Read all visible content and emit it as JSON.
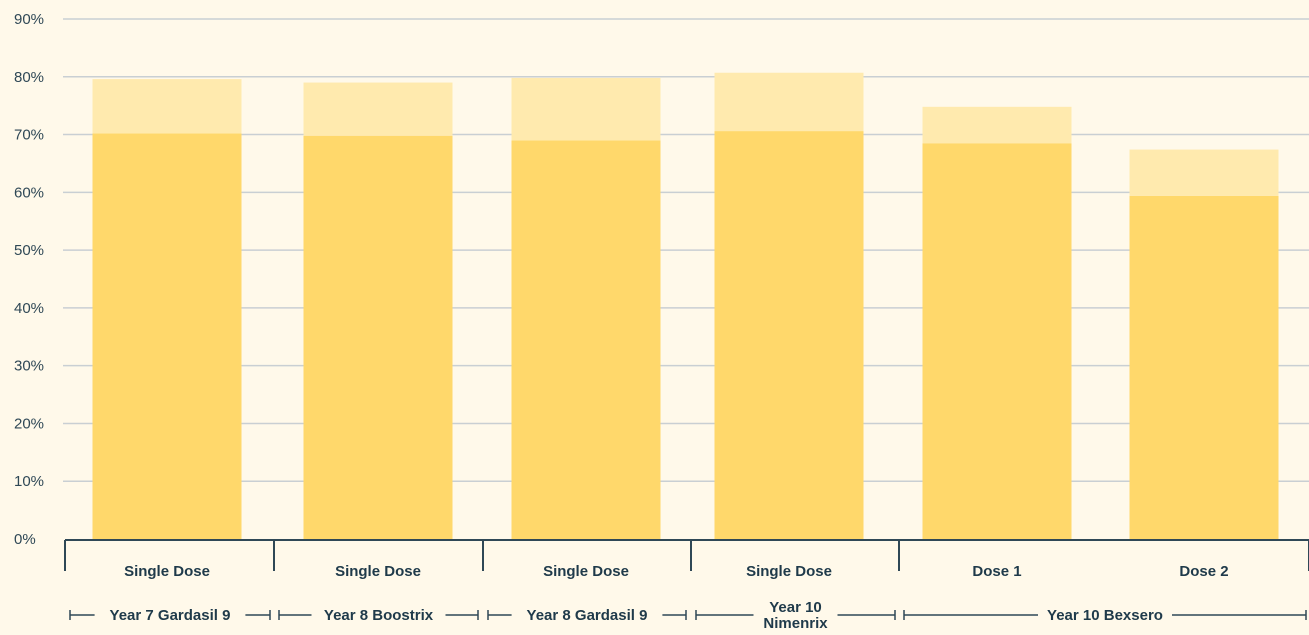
{
  "chart_data": {
    "type": "bar",
    "stacked": true,
    "yticks": [
      "0%",
      "10%",
      "20%",
      "30%",
      "40%",
      "50%",
      "60%",
      "70%",
      "80%",
      "90%"
    ],
    "ylim": [
      0,
      90
    ],
    "grid": true,
    "categories": [
      "Single Dose",
      "Single Dose",
      "Single Dose",
      "Single Dose",
      "Dose 1",
      "Dose 2"
    ],
    "groups": [
      "Year 7 Gardasil 9",
      "Year 8 Boostrix",
      "Year 8 Gardasil 9",
      "Year 10 Nimenrix",
      "Year 10 Bexsero"
    ],
    "group_spans": [
      [
        0,
        0
      ],
      [
        1,
        1
      ],
      [
        2,
        2
      ],
      [
        3,
        3
      ],
      [
        4,
        5
      ]
    ],
    "series": [
      {
        "values": [
          70.2,
          69.8,
          69.0,
          70.6,
          68.5,
          59.4
        ]
      },
      {
        "values": [
          9.4,
          9.2,
          10.8,
          10.1,
          6.3,
          8.0
        ]
      }
    ],
    "colors": [
      "#ffd86b",
      "#ffeaae"
    ],
    "totals": [
      79.6,
      79.0,
      79.8,
      80.7,
      74.8,
      67.4
    ]
  }
}
